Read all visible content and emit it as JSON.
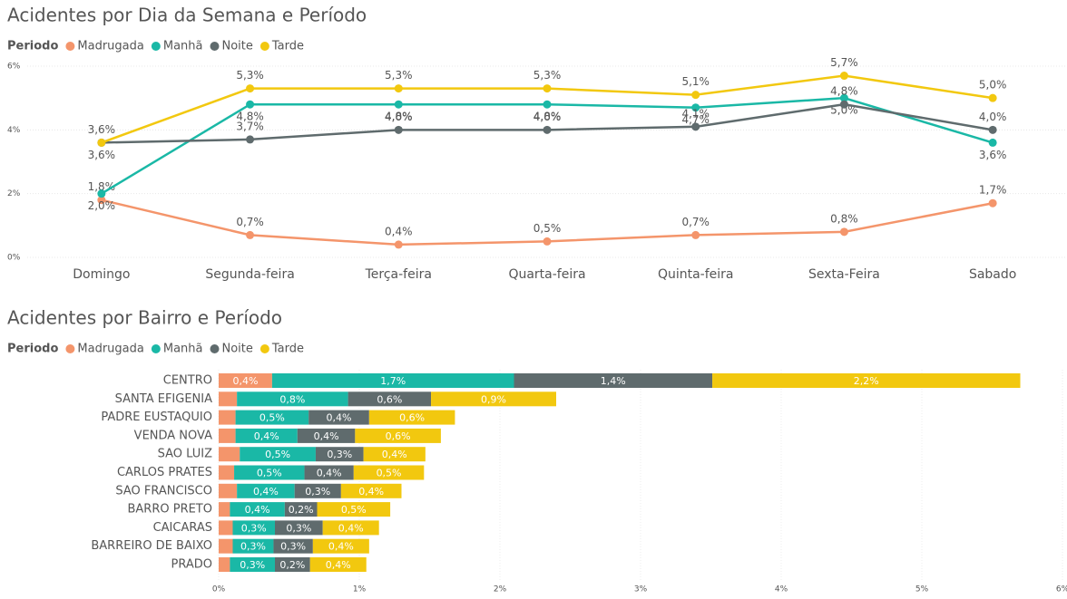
{
  "chart_data": [
    {
      "type": "line",
      "title": "Acidentes por Dia da Semana e Período",
      "legend_title": "Periodo",
      "categories": [
        "Domingo",
        "Segunda-feira",
        "Terça-feira",
        "Quarta-feira",
        "Quinta-feira",
        "Sexta-Feira",
        "Sabado"
      ],
      "series": [
        {
          "name": "Madrugada",
          "color": "#f4956b",
          "values": [
            1.8,
            0.7,
            0.4,
            0.5,
            0.7,
            0.8,
            1.7
          ],
          "value_labels": [
            "1,8%",
            "0,7%",
            "0,4%",
            "0,5%",
            "0,7%",
            "0,8%",
            "1,7%"
          ]
        },
        {
          "name": "Manhã",
          "color": "#1ab8a6",
          "values": [
            2.0,
            4.8,
            4.8,
            4.8,
            4.7,
            5.0,
            3.6
          ],
          "value_labels": [
            "2,0%",
            "4,8%",
            "4,8%",
            "4,8%",
            "4,7%",
            "5,0%",
            "3,6%"
          ]
        },
        {
          "name": "Noite",
          "color": "#5f6b6d",
          "values": [
            3.6,
            3.7,
            4.0,
            4.0,
            4.1,
            4.8,
            4.0
          ],
          "value_labels": [
            "3,6%",
            "3,7%",
            "4,0%",
            "4,0%",
            "4,1%",
            "4,8%",
            "4,0%"
          ]
        },
        {
          "name": "Tarde",
          "color": "#f2c80f",
          "values": [
            3.6,
            5.3,
            5.3,
            5.3,
            5.1,
            5.7,
            5.0
          ],
          "value_labels": [
            "3,6%",
            "5,3%",
            "5,3%",
            "5,3%",
            "5,1%",
            "5,7%",
            "5,0%"
          ]
        }
      ],
      "ylim": [
        0,
        6
      ],
      "yticks": [
        {
          "value": 0,
          "label": "0%"
        },
        {
          "value": 2,
          "label": "2%"
        },
        {
          "value": 4,
          "label": "4%"
        },
        {
          "value": 6,
          "label": "6%"
        }
      ],
      "grid": true
    },
    {
      "type": "stacked_bar_horizontal",
      "title": "Acidentes por Bairro e Período",
      "legend_title": "Periodo",
      "categories": [
        "CENTRO",
        "SANTA EFIGENIA",
        "PADRE EUSTAQUIO",
        "VENDA NOVA",
        "SAO LUIZ",
        "CARLOS PRATES",
        "SAO FRANCISCO",
        "BARRO PRETO",
        "CAICARAS",
        "BARREIRO DE BAIXO",
        "PRADO"
      ],
      "series": [
        {
          "name": "Madrugada",
          "color": "#f4956b",
          "values": [
            0.38,
            0.13,
            0.12,
            0.12,
            0.15,
            0.11,
            0.13,
            0.08,
            0.1,
            0.1,
            0.08
          ],
          "value_labels": [
            "0,4%",
            null,
            null,
            null,
            null,
            null,
            null,
            null,
            null,
            null,
            null
          ]
        },
        {
          "name": "Manhã",
          "color": "#1ab8a6",
          "values": [
            1.72,
            0.79,
            0.52,
            0.44,
            0.54,
            0.5,
            0.41,
            0.39,
            0.3,
            0.29,
            0.32
          ],
          "value_labels": [
            "1,7%",
            "0,8%",
            "0,5%",
            "0,4%",
            "0,5%",
            "0,5%",
            "0,4%",
            "0,4%",
            "0,3%",
            "0,3%",
            "0,3%"
          ]
        },
        {
          "name": "Noite",
          "color": "#5f6b6d",
          "values": [
            1.41,
            0.59,
            0.43,
            0.41,
            0.34,
            0.35,
            0.33,
            0.23,
            0.34,
            0.28,
            0.25
          ],
          "value_labels": [
            "1,4%",
            "0,6%",
            "0,4%",
            "0,4%",
            "0,3%",
            "0,4%",
            "0,3%",
            "0,2%",
            "0,3%",
            "0,3%",
            "0,2%"
          ]
        },
        {
          "name": "Tarde",
          "color": "#f2c80f",
          "values": [
            2.19,
            0.89,
            0.61,
            0.61,
            0.44,
            0.5,
            0.43,
            0.52,
            0.4,
            0.4,
            0.4
          ],
          "value_labels": [
            "2,2%",
            "0,9%",
            "0,6%",
            "0,6%",
            "0,4%",
            "0,5%",
            "0,4%",
            "0,5%",
            "0,4%",
            "0,4%",
            "0,4%"
          ]
        }
      ],
      "xlim": [
        0,
        6
      ],
      "xticks": [
        {
          "value": 0,
          "label": "0%"
        },
        {
          "value": 1,
          "label": "1%"
        },
        {
          "value": 2,
          "label": "2%"
        },
        {
          "value": 3,
          "label": "3%"
        },
        {
          "value": 4,
          "label": "4%"
        },
        {
          "value": 5,
          "label": "5%"
        },
        {
          "value": 6,
          "label": "6%"
        }
      ],
      "grid": true
    }
  ]
}
